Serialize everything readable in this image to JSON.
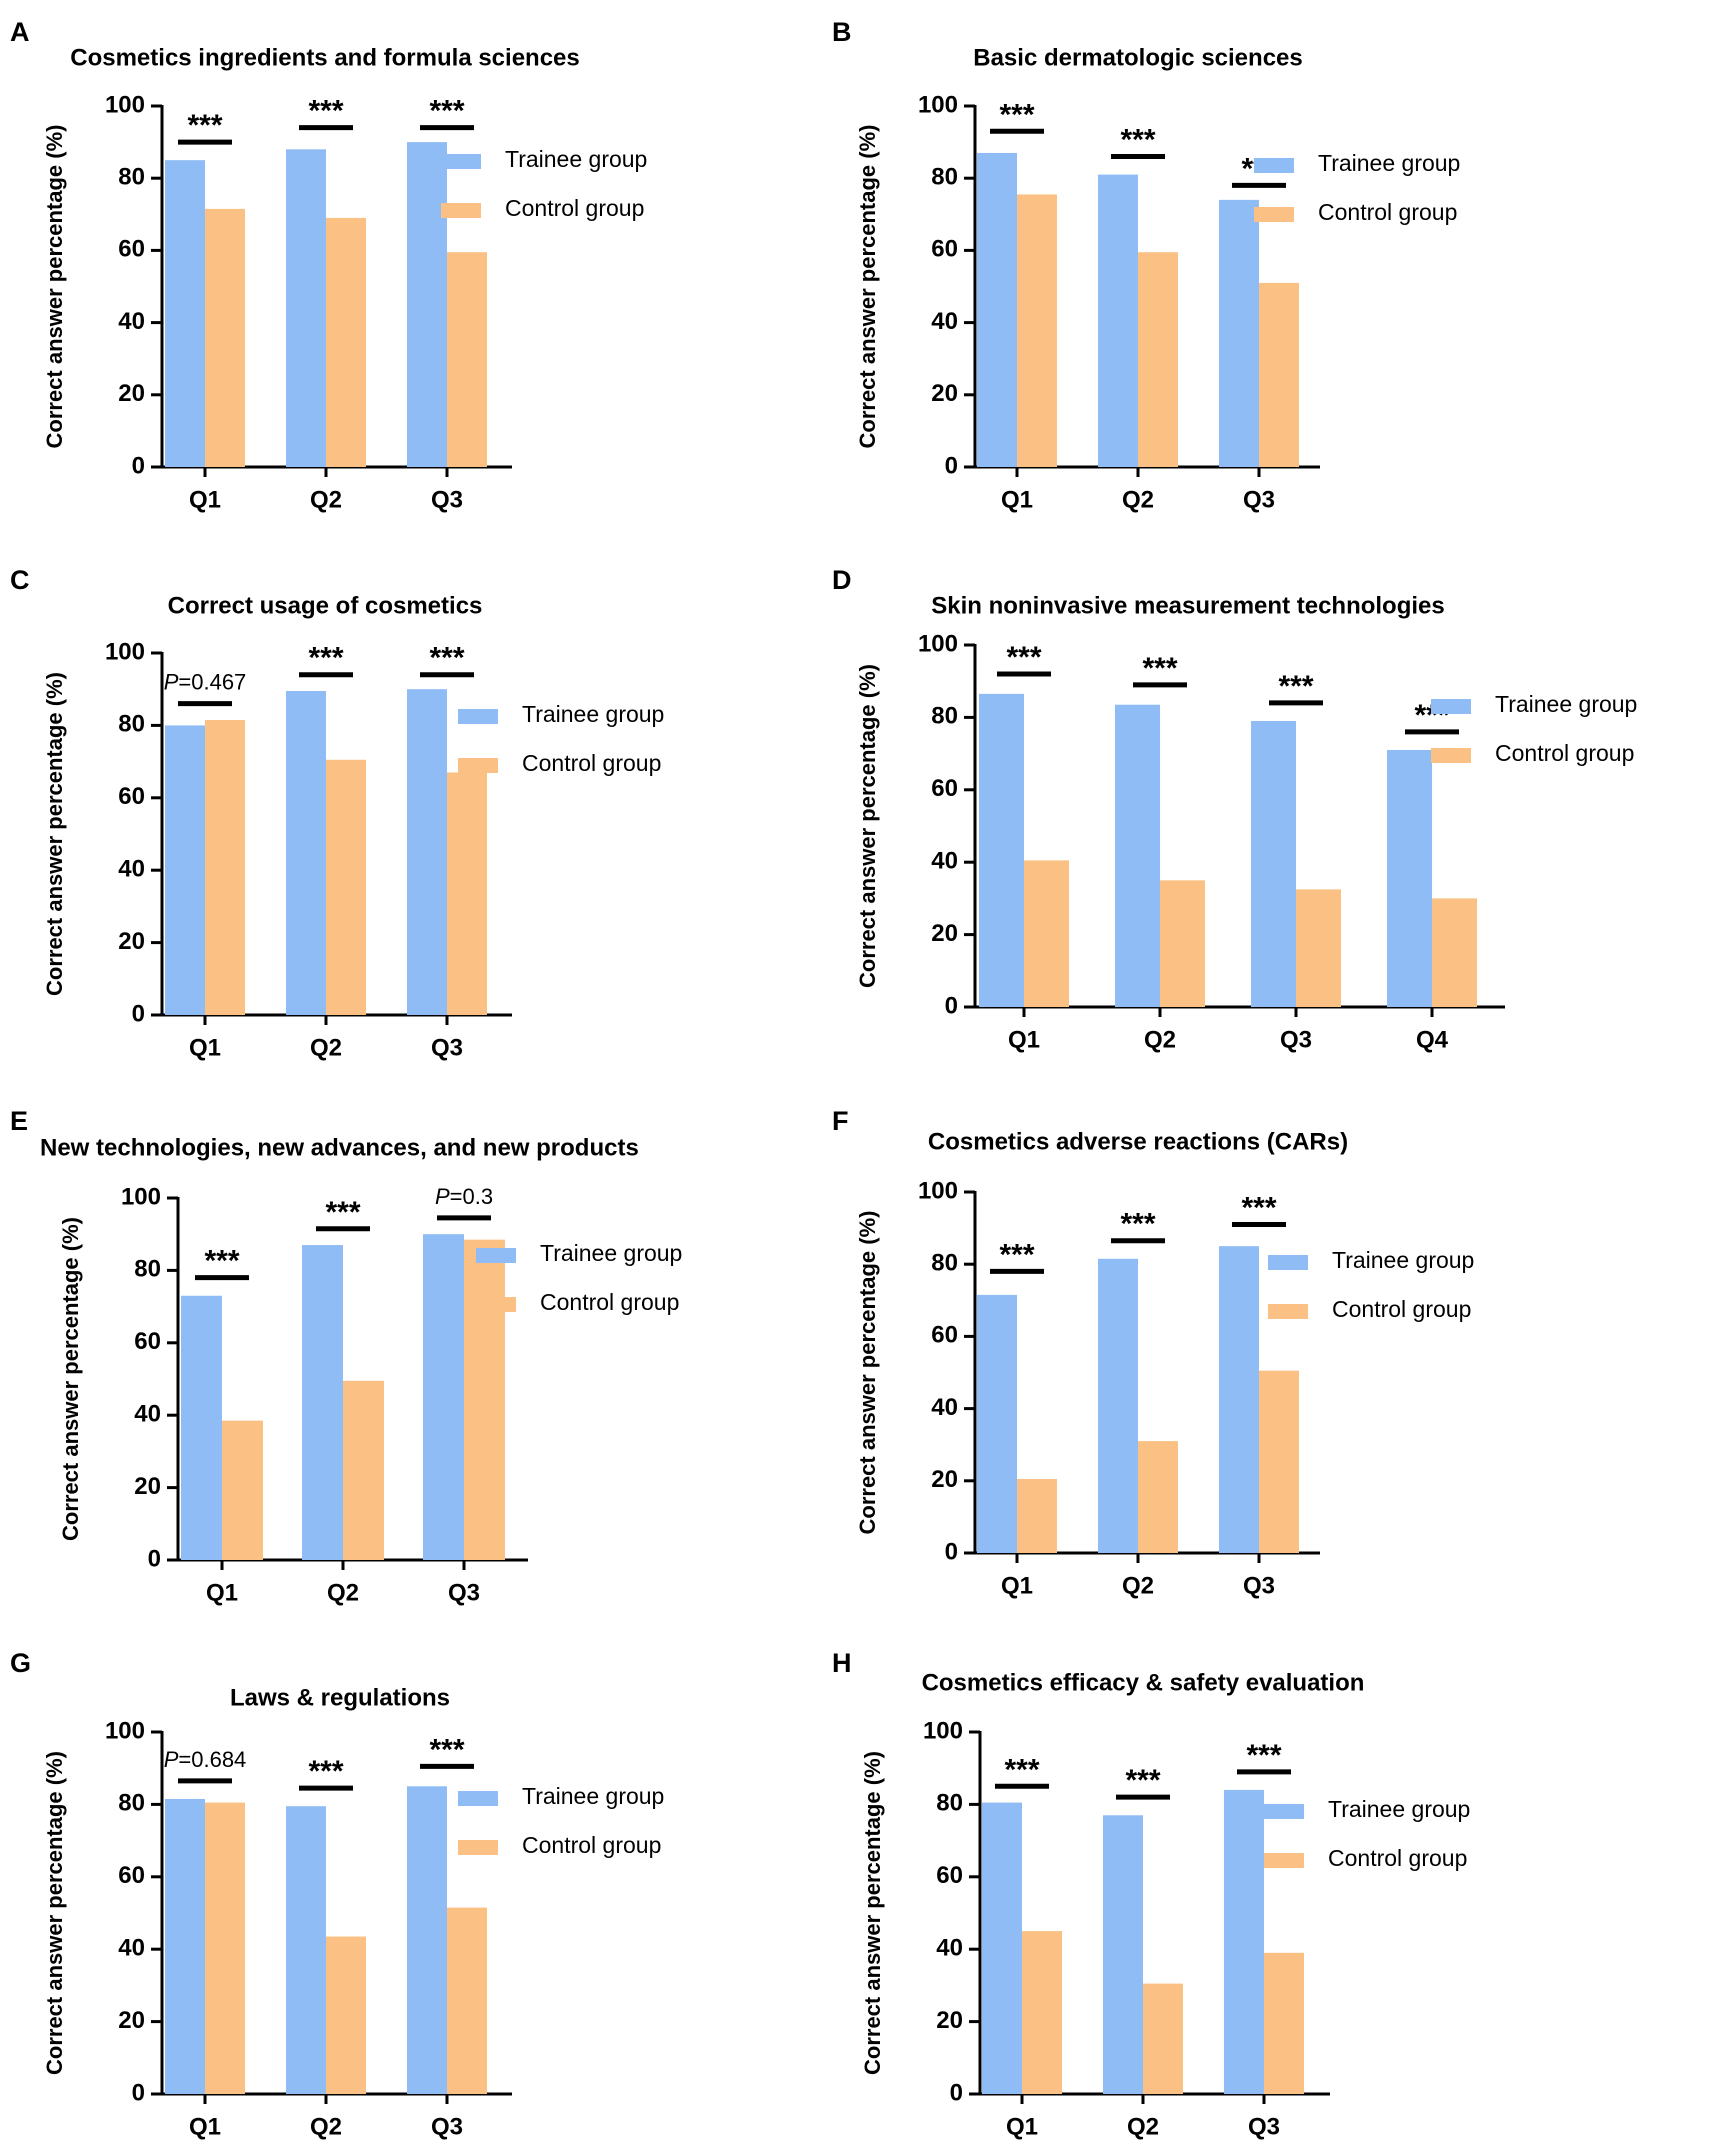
{
  "colors": {
    "trainee": "#8fbcf5",
    "control": "#fbc184",
    "axis": "#000000"
  },
  "chart_data": [
    {
      "panel": "A",
      "type": "bar",
      "title": "Cosmetics ingredients and formula sciences",
      "ylabel": "Correct answer percentage (%)",
      "xlabel": "",
      "ylim": [
        0,
        100
      ],
      "yticks": [
        "0",
        "20",
        "40",
        "60",
        "80",
        "100"
      ],
      "categories": [
        "Q1",
        "Q2",
        "Q3"
      ],
      "series": [
        {
          "name": "Trainee group",
          "values": [
            85,
            88,
            90
          ]
        },
        {
          "name": "Control group",
          "values": [
            71.5,
            69,
            59.5
          ]
        }
      ],
      "significance": [
        {
          "label": "***",
          "italic_p": false,
          "y": 90
        },
        {
          "label": "***",
          "italic_p": false,
          "y": 94
        },
        {
          "label": "***",
          "italic_p": false,
          "y": 94
        }
      ],
      "legend_position": "right"
    },
    {
      "panel": "B",
      "type": "bar",
      "title": "Basic dermatologic sciences",
      "ylabel": "Correct answer percentage (%)",
      "xlabel": "",
      "ylim": [
        0,
        100
      ],
      "yticks": [
        "0",
        "20",
        "40",
        "60",
        "80",
        "100"
      ],
      "categories": [
        "Q1",
        "Q2",
        "Q3"
      ],
      "series": [
        {
          "name": "Trainee group",
          "values": [
            87,
            81,
            74
          ]
        },
        {
          "name": "Control group",
          "values": [
            75.5,
            59.5,
            51
          ]
        }
      ],
      "significance": [
        {
          "label": "***",
          "italic_p": false,
          "y": 93
        },
        {
          "label": "***",
          "italic_p": false,
          "y": 86
        },
        {
          "label": "***",
          "italic_p": false,
          "y": 78
        }
      ],
      "legend_position": "right"
    },
    {
      "panel": "C",
      "type": "bar",
      "title": "Correct usage of cosmetics",
      "ylabel": "Correct answer percentage (%)",
      "xlabel": "",
      "ylim": [
        0,
        100
      ],
      "yticks": [
        "0",
        "20",
        "40",
        "60",
        "80",
        "100"
      ],
      "categories": [
        "Q1",
        "Q2",
        "Q3"
      ],
      "series": [
        {
          "name": "Trainee group",
          "values": [
            80,
            89.5,
            90
          ]
        },
        {
          "name": "Control group",
          "values": [
            81.5,
            70.5,
            67
          ]
        }
      ],
      "significance": [
        {
          "label": "0.467",
          "italic_p": true,
          "y": 86
        },
        {
          "label": "***",
          "italic_p": false,
          "y": 94
        },
        {
          "label": "***",
          "italic_p": false,
          "y": 94
        }
      ],
      "legend_position": "right"
    },
    {
      "panel": "D",
      "type": "bar",
      "title": "Skin noninvasive measurement technologies",
      "ylabel": "Correct answer percentage (%)",
      "xlabel": "",
      "ylim": [
        0,
        100
      ],
      "yticks": [
        "0",
        "20",
        "40",
        "60",
        "80",
        "100"
      ],
      "categories": [
        "Q1",
        "Q2",
        "Q3",
        "Q4"
      ],
      "series": [
        {
          "name": "Trainee group",
          "values": [
            86.5,
            83.5,
            79,
            71
          ]
        },
        {
          "name": "Control group",
          "values": [
            40.5,
            35,
            32.5,
            30
          ]
        }
      ],
      "significance": [
        {
          "label": "***",
          "italic_p": false,
          "y": 92
        },
        {
          "label": "***",
          "italic_p": false,
          "y": 89
        },
        {
          "label": "***",
          "italic_p": false,
          "y": 84
        },
        {
          "label": "***",
          "italic_p": false,
          "y": 76
        }
      ],
      "legend_position": "right"
    },
    {
      "panel": "E",
      "type": "bar",
      "title": "New technologies, new advances, and new products",
      "ylabel": "Correct answer percentage (%)",
      "xlabel": "",
      "ylim": [
        0,
        100
      ],
      "yticks": [
        "0",
        "20",
        "40",
        "60",
        "80",
        "100"
      ],
      "categories": [
        "Q1",
        "Q2",
        "Q3"
      ],
      "series": [
        {
          "name": "Trainee group",
          "values": [
            73,
            87,
            90
          ]
        },
        {
          "name": "Control group",
          "values": [
            38.5,
            49.5,
            88.5
          ]
        }
      ],
      "significance": [
        {
          "label": "***",
          "italic_p": false,
          "y": 78
        },
        {
          "label": "***",
          "italic_p": false,
          "y": 91.5
        },
        {
          "label": "0.3",
          "italic_p": true,
          "y": 94.5
        }
      ],
      "legend_position": "right"
    },
    {
      "panel": "F",
      "type": "bar",
      "title": "Cosmetics adverse reactions (CARs)",
      "ylabel": "Correct answer percentage (%)",
      "xlabel": "",
      "ylim": [
        0,
        100
      ],
      "yticks": [
        "0",
        "20",
        "40",
        "60",
        "80",
        "100"
      ],
      "categories": [
        "Q1",
        "Q2",
        "Q3"
      ],
      "series": [
        {
          "name": "Trainee group",
          "values": [
            71.5,
            81.5,
            85
          ]
        },
        {
          "name": "Control group",
          "values": [
            20.5,
            31,
            50.5
          ]
        }
      ],
      "significance": [
        {
          "label": "***",
          "italic_p": false,
          "y": 78
        },
        {
          "label": "***",
          "italic_p": false,
          "y": 86.5
        },
        {
          "label": "***",
          "italic_p": false,
          "y": 91
        }
      ],
      "legend_position": "right"
    },
    {
      "panel": "G",
      "type": "bar",
      "title": "Laws & regulations",
      "ylabel": "Correct answer percentage (%)",
      "xlabel": "",
      "ylim": [
        0,
        100
      ],
      "yticks": [
        "0",
        "20",
        "40",
        "60",
        "80",
        "100"
      ],
      "categories": [
        "Q1",
        "Q2",
        "Q3"
      ],
      "series": [
        {
          "name": "Trainee group",
          "values": [
            81.5,
            79.5,
            85
          ]
        },
        {
          "name": "Control group",
          "values": [
            80.5,
            43.5,
            51.5
          ]
        }
      ],
      "significance": [
        {
          "label": "0.684",
          "italic_p": true,
          "y": 86.5
        },
        {
          "label": "***",
          "italic_p": false,
          "y": 84.5
        },
        {
          "label": "***",
          "italic_p": false,
          "y": 90.5
        }
      ],
      "legend_position": "right"
    },
    {
      "panel": "H",
      "type": "bar",
      "title": "Cosmetics efficacy & safety evaluation",
      "ylabel": "Correct answer percentage (%)",
      "xlabel": "",
      "ylim": [
        0,
        100
      ],
      "yticks": [
        "0",
        "20",
        "40",
        "60",
        "80",
        "100"
      ],
      "categories": [
        "Q1",
        "Q2",
        "Q3"
      ],
      "series": [
        {
          "name": "Trainee group",
          "values": [
            80.5,
            77,
            84
          ]
        },
        {
          "name": "Control group",
          "values": [
            45,
            30.5,
            39
          ]
        }
      ],
      "significance": [
        {
          "label": "***",
          "italic_p": false,
          "y": 85
        },
        {
          "label": "***",
          "italic_p": false,
          "y": 82
        },
        {
          "label": "***",
          "italic_p": false,
          "y": 89
        }
      ],
      "legend_position": "right"
    }
  ]
}
